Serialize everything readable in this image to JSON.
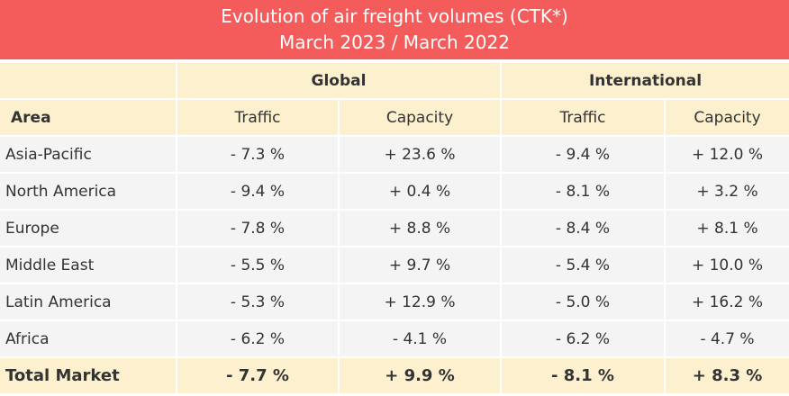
{
  "title": "Evolution of air freight volumes (CTK*)",
  "subtitle": "March 2023 / March 2022",
  "chart_data": {
    "type": "table",
    "groups": [
      "Global",
      "International"
    ],
    "columns": [
      "Area",
      "Traffic",
      "Capacity",
      "Traffic",
      "Capacity"
    ],
    "rows": [
      [
        "Asia-Pacific",
        "- 7.3 %",
        "+ 23.6 %",
        "- 9.4 %",
        "+ 12.0 %"
      ],
      [
        "North America",
        "- 9.4 %",
        "+ 0.4 %",
        "- 8.1 %",
        "+ 3.2 %"
      ],
      [
        "Europe",
        "- 7.8 %",
        "+ 8.8 %",
        "- 8.4 %",
        "+ 8.1 %"
      ],
      [
        "Middle East",
        "- 5.5 %",
        "+ 9.7 %",
        "- 5.4 %",
        "+ 10.0 %"
      ],
      [
        "Latin America",
        "- 5.3 %",
        "+ 12.9 %",
        "- 5.0 %",
        "+ 16.2 %"
      ],
      [
        "Africa",
        "- 6.2 %",
        "- 4.1 %",
        "- 6.2 %",
        "- 4.7 %"
      ]
    ],
    "total": [
      "Total Market",
      "- 7.7 %",
      "+ 9.9 %",
      "- 8.1 %",
      "+ 8.3 %"
    ]
  },
  "colors": {
    "title_bg": "#f45b5b",
    "header_bg": "#fdf0cf",
    "cell_bg": "#f4f4f4"
  }
}
